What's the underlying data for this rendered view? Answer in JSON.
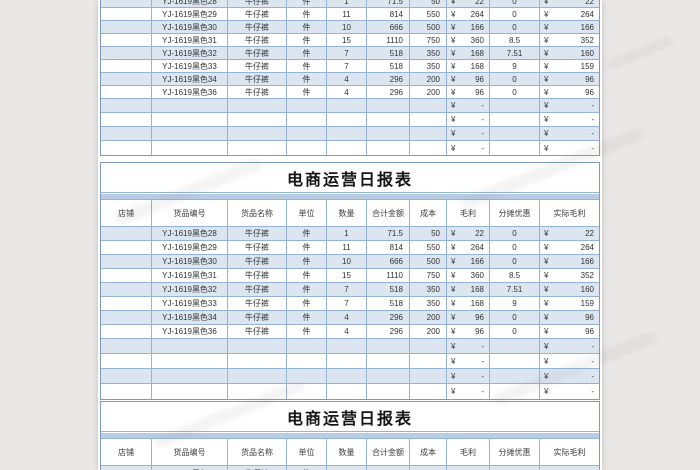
{
  "report": {
    "title": "电商运营日报表",
    "currency_symbol": "¥",
    "empty_value": "-",
    "columns": [
      "店铺",
      "货品编号",
      "货品名称",
      "单位",
      "数量",
      "合计金额",
      "成本",
      "毛利",
      "分摊优惠",
      "实际毛利"
    ],
    "rows": [
      {
        "shop": "",
        "code": "YJ-1619黑色28",
        "name": "牛仔裤",
        "unit": "件",
        "qty": "1",
        "amount": "71.5",
        "cost": "50",
        "profit": "22",
        "discount": "0",
        "actual_profit": "22"
      },
      {
        "shop": "",
        "code": "YJ-1619黑色29",
        "name": "牛仔裤",
        "unit": "件",
        "qty": "11",
        "amount": "814",
        "cost": "550",
        "profit": "264",
        "discount": "0",
        "actual_profit": "264"
      },
      {
        "shop": "",
        "code": "YJ-1619黑色30",
        "name": "牛仔裤",
        "unit": "件",
        "qty": "10",
        "amount": "666",
        "cost": "500",
        "profit": "166",
        "discount": "0",
        "actual_profit": "166"
      },
      {
        "shop": "",
        "code": "YJ-1619黑色31",
        "name": "牛仔裤",
        "unit": "件",
        "qty": "15",
        "amount": "1110",
        "cost": "750",
        "profit": "360",
        "discount": "8.5",
        "actual_profit": "352"
      },
      {
        "shop": "",
        "code": "YJ-1619黑色32",
        "name": "牛仔裤",
        "unit": "件",
        "qty": "7",
        "amount": "518",
        "cost": "350",
        "profit": "168",
        "discount": "7.51",
        "actual_profit": "160"
      },
      {
        "shop": "",
        "code": "YJ-1619黑色33",
        "name": "牛仔裤",
        "unit": "件",
        "qty": "7",
        "amount": "518",
        "cost": "350",
        "profit": "168",
        "discount": "9",
        "actual_profit": "159"
      },
      {
        "shop": "",
        "code": "YJ-1619黑色34",
        "name": "牛仔裤",
        "unit": "件",
        "qty": "4",
        "amount": "296",
        "cost": "200",
        "profit": "96",
        "discount": "0",
        "actual_profit": "96"
      },
      {
        "shop": "",
        "code": "YJ-1619黑色36",
        "name": "牛仔裤",
        "unit": "件",
        "qty": "4",
        "amount": "296",
        "cost": "200",
        "profit": "96",
        "discount": "0",
        "actual_profit": "96"
      }
    ],
    "empty_row_count": 4
  },
  "colors": {
    "row_alt_blue": "#dce6f1",
    "grid_border": "#95b3d7",
    "outer_border": "#7d9bc1",
    "accent_band": "#b8cce4",
    "page_background": "#eae8e6",
    "sheet_background": "#ffffff",
    "title_text": "#151515",
    "cell_text": "#333333"
  }
}
